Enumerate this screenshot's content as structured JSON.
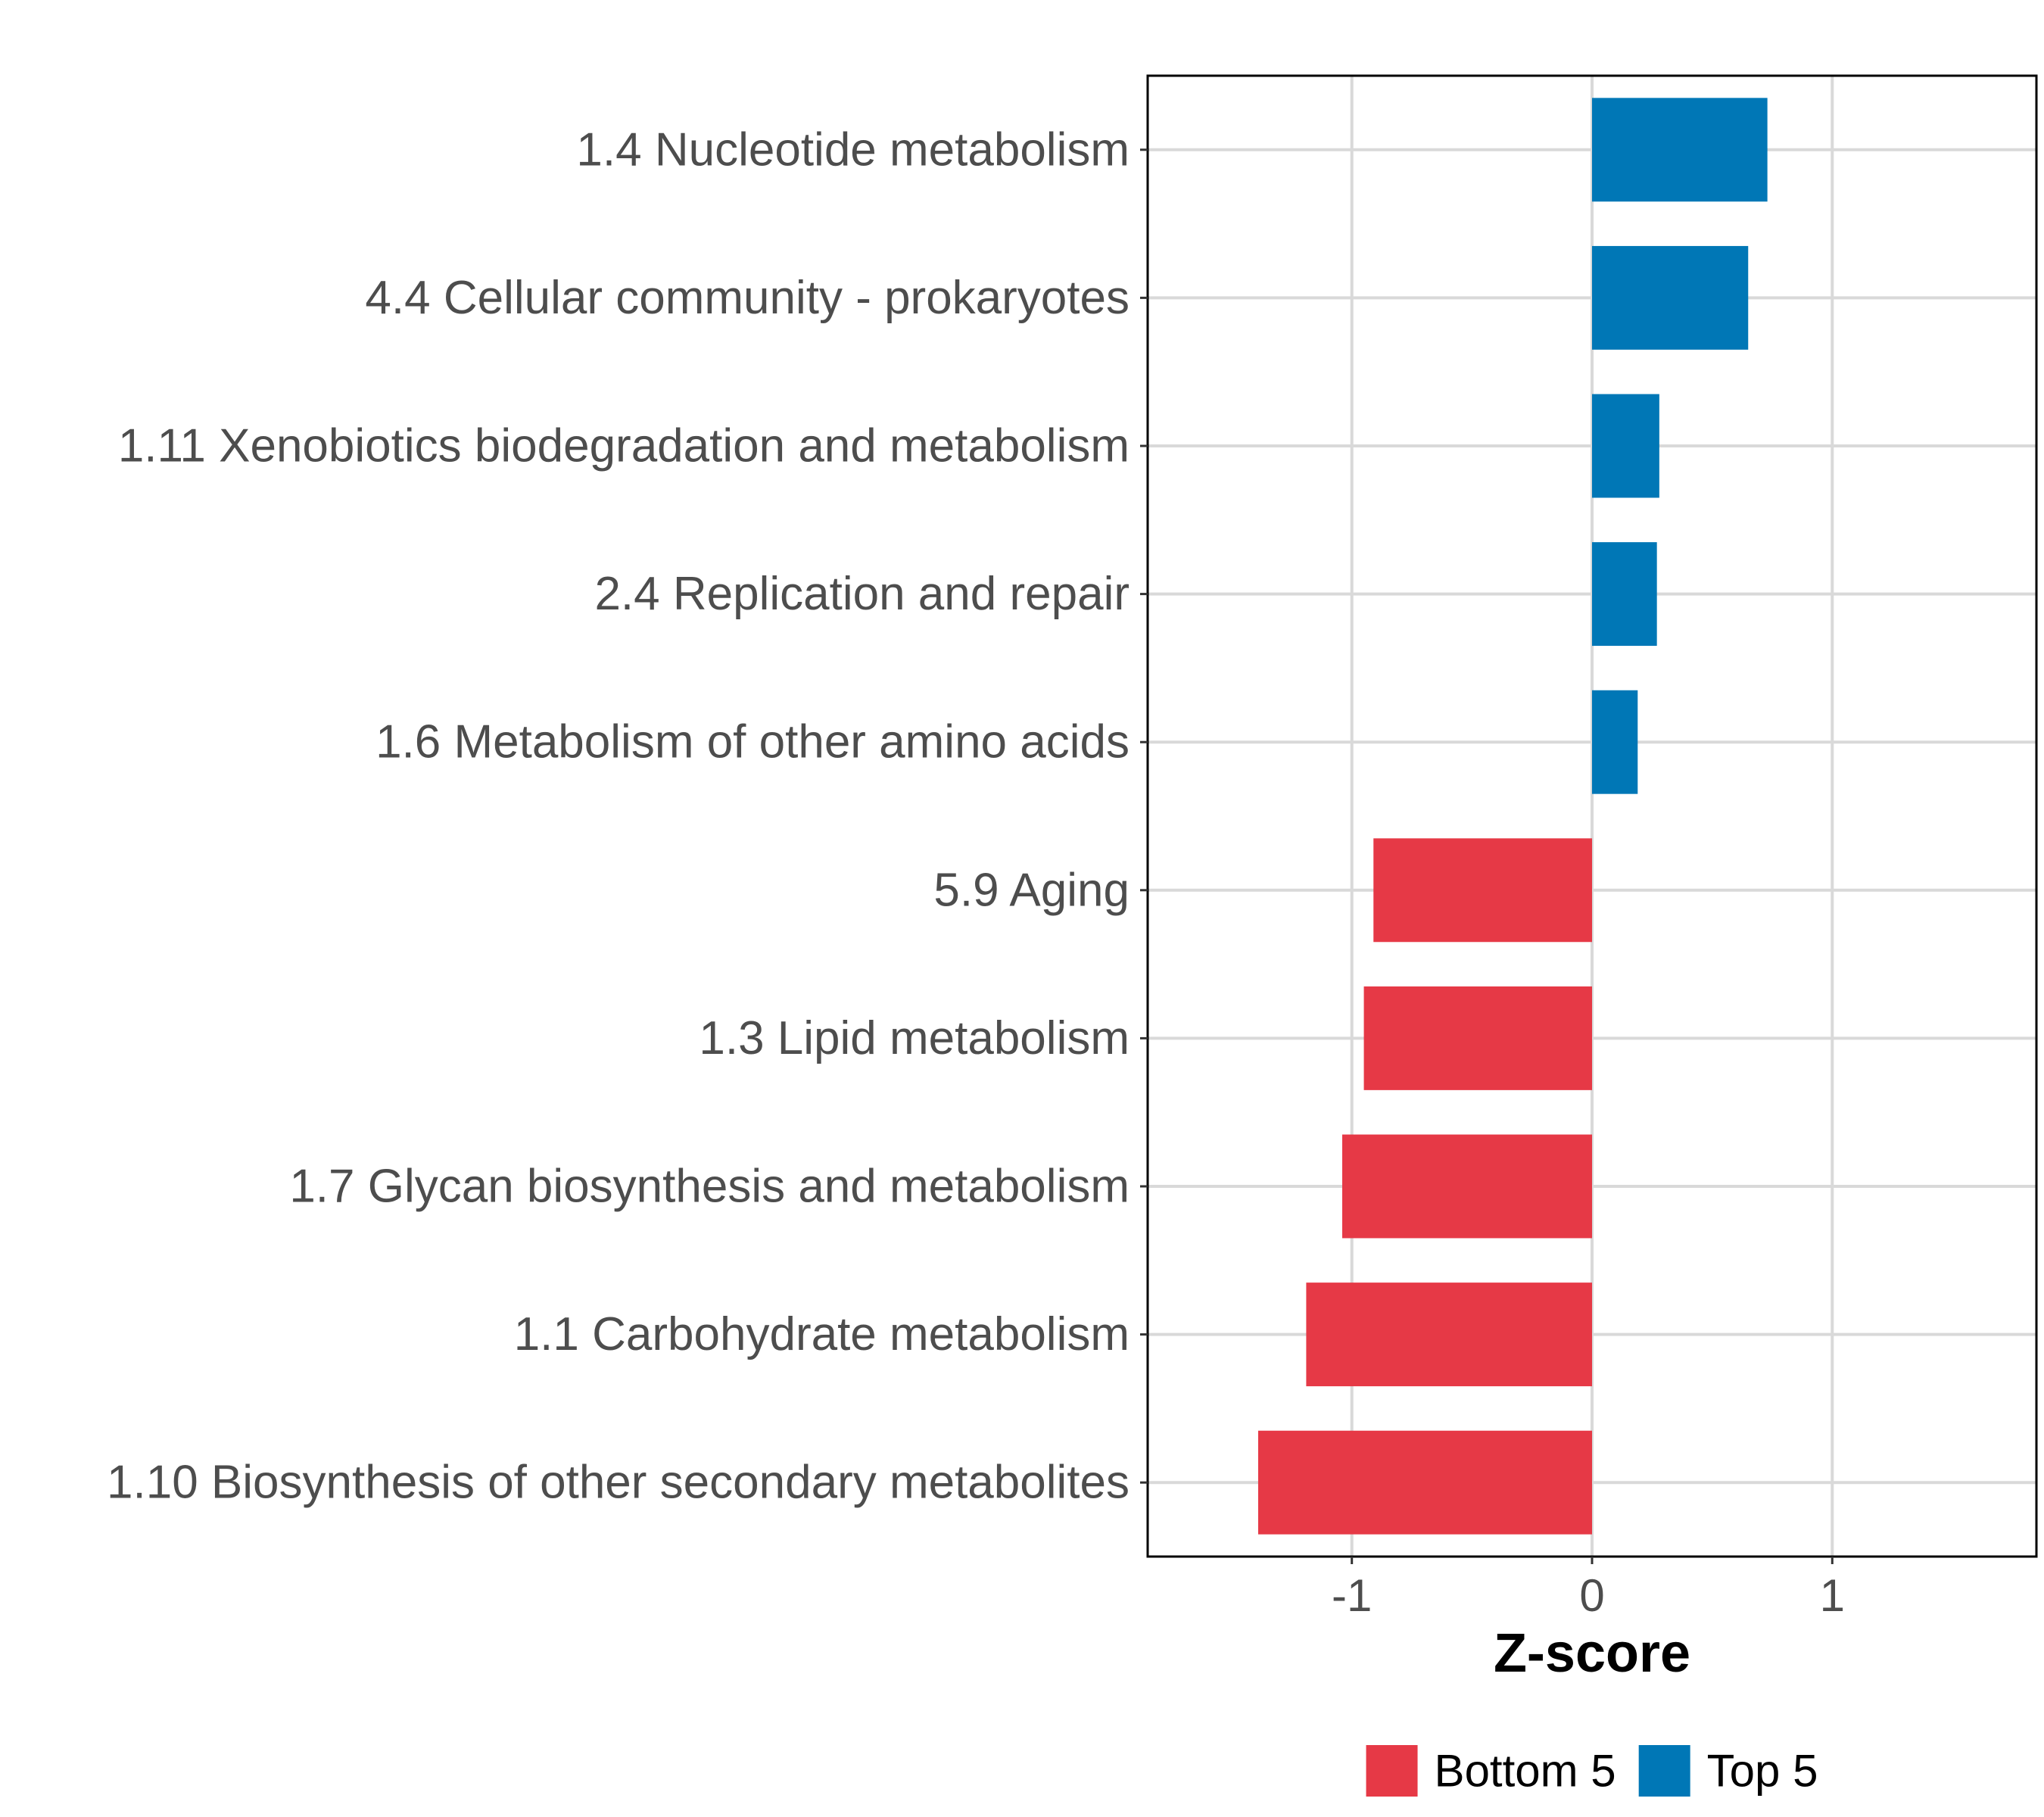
{
  "chart_data": {
    "type": "bar",
    "orientation": "horizontal",
    "xlabel": "Z-score",
    "ylabel": "",
    "xlim": [
      -1.85,
      1.85
    ],
    "xticks": [
      -1,
      0,
      1
    ],
    "xtick_labels": [
      "-1",
      "0",
      "1"
    ],
    "grid": true,
    "categories": [
      "1.4 Nucleotide metabolism",
      "4.4 Cellular community - prokaryotes",
      "1.11 Xenobiotics biodegradation and metabolism",
      "2.4 Replication and repair",
      "1.6 Metabolism of other amino acids",
      "5.9 Aging",
      "1.3 Lipid metabolism",
      "1.7 Glycan biosynthesis and metabolism",
      "1.1 Carbohydrate metabolism",
      "1.10 Biosynthesis of other secondary metabolites"
    ],
    "values": [
      0.73,
      0.65,
      0.28,
      0.27,
      0.19,
      -0.91,
      -0.95,
      -1.04,
      -1.19,
      -1.39
    ],
    "groups": [
      "Top 5",
      "Top 5",
      "Top 5",
      "Top 5",
      "Top 5",
      "Bottom 5",
      "Bottom 5",
      "Bottom 5",
      "Bottom 5",
      "Bottom 5"
    ],
    "legend": {
      "position": "bottom",
      "entries": [
        {
          "label": "Bottom 5",
          "color": "#E63946"
        },
        {
          "label": "Top 5",
          "color": "#0077B6"
        }
      ]
    }
  }
}
